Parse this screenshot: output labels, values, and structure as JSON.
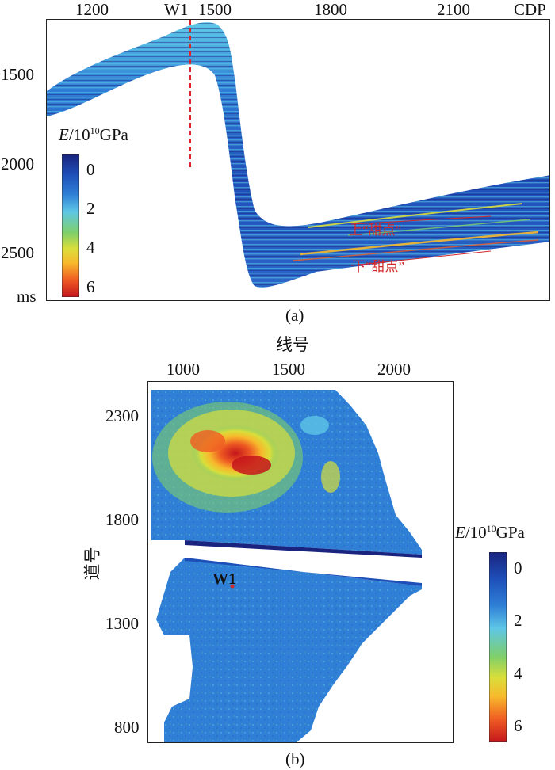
{
  "panel_a": {
    "caption": "(a)",
    "x_ticks": [
      "1200",
      "1500",
      "1800",
      "2100"
    ],
    "x_unit": "CDP",
    "y_ticks": [
      "1500",
      "2000",
      "2500"
    ],
    "y_unit": "ms",
    "well_label": "W1",
    "annotation_upper": "上“甜点”",
    "annotation_lower": "下“甜点”",
    "colorbar": {
      "title_var": "E",
      "title_unit_pre": "/10",
      "title_exp": "10",
      "title_unit_post": "GPa",
      "ticks": [
        "0",
        "2",
        "4",
        "6"
      ]
    }
  },
  "panel_b": {
    "caption": "(b)",
    "x_title": "线号",
    "x_ticks": [
      "1000",
      "1500",
      "2000"
    ],
    "y_title": "道号",
    "y_ticks": [
      "2300",
      "1800",
      "1300",
      "800"
    ],
    "well_label": "W1",
    "colorbar": {
      "title_var": "E",
      "title_unit_pre": "/10",
      "title_exp": "10",
      "title_unit_post": "GPa",
      "ticks": [
        "0",
        "2",
        "4",
        "6"
      ]
    }
  },
  "colormap": [
    "#1a237e",
    "#1e4fb8",
    "#2f7fd6",
    "#5ec6e6",
    "#7fcf6a",
    "#d9de3a",
    "#f7b92c",
    "#ef5b23",
    "#c4151c"
  ]
}
